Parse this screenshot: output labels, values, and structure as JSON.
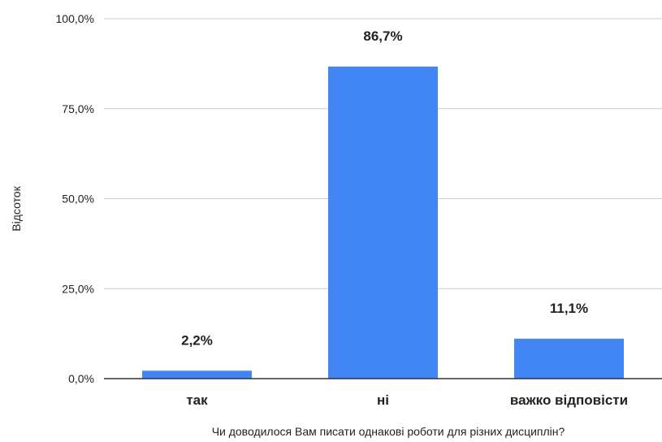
{
  "chart_data": {
    "type": "bar",
    "categories": [
      "так",
      "ні",
      "важко відповісти"
    ],
    "values": [
      2.2,
      86.7,
      11.1
    ],
    "data_labels": [
      "2,2%",
      "86,7%",
      "11,1%"
    ],
    "ylim": [
      0,
      100
    ],
    "yticks": [
      0,
      25,
      50,
      75,
      100
    ],
    "ytick_labels": [
      "0,0%",
      "25,0%",
      "50,0%",
      "75,0%",
      "100,0%"
    ],
    "xlabel": "Чи доводилося Вам писати однакові роботи для різних дисциплін?",
    "ylabel": "Відсоток",
    "grid": true,
    "legend": "none",
    "colors": {
      "bar": "#4285f4",
      "grid": "#cccccc",
      "axis": "#333333",
      "text": "#222222"
    }
  }
}
